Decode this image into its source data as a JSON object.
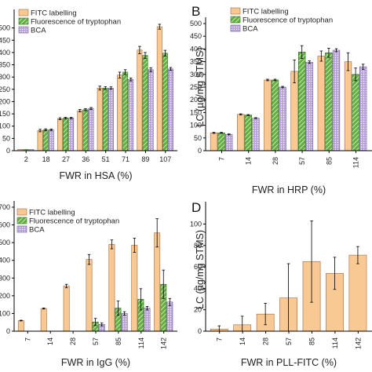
{
  "colors": {
    "fitc_fill": "#F9C993",
    "fitc_stroke": "#A0683A",
    "trp_fill": "#63B03F",
    "trp_stroke": "#2D6B1F",
    "bca_fill": "#B9A3DA",
    "bca_stroke": "#6C5A94",
    "axis": "#000000"
  },
  "chart_data": [
    {
      "id": "A",
      "type": "bar",
      "panel_label": "",
      "xlabel": "FWR in HSA (%)",
      "ylabel": "",
      "ylim": [
        0,
        550
      ],
      "yticks": [
        0,
        50,
        100,
        150,
        200,
        250,
        300,
        350,
        400,
        450,
        500
      ],
      "ytick_labels": [
        "0",
        "50",
        "100",
        "150",
        "200",
        "250",
        "300",
        "350",
        "400",
        "450",
        "500"
      ],
      "categories": [
        "2",
        "18",
        "27",
        "36",
        "51",
        "71",
        "89",
        "107"
      ],
      "series": [
        {
          "name": "FITC labelling",
          "style": "fitc",
          "values": [
            5,
            82,
            130,
            163,
            255,
            308,
            410,
            505
          ],
          "errors": [
            0,
            5,
            4,
            5,
            8,
            12,
            15,
            10
          ]
        },
        {
          "name": "Fluorescence of tryptophan",
          "style": "trp",
          "values": [
            5,
            85,
            133,
            167,
            255,
            320,
            388,
            397
          ],
          "errors": [
            0,
            4,
            3,
            4,
            6,
            10,
            12,
            12
          ]
        },
        {
          "name": "BCA",
          "style": "bca",
          "values": [
            5,
            85,
            133,
            172,
            255,
            290,
            330,
            333
          ],
          "errors": [
            0,
            3,
            3,
            4,
            5,
            6,
            8,
            6
          ]
        }
      ],
      "legend": "top-left",
      "rotate_xticks": false
    },
    {
      "id": "B",
      "type": "bar",
      "panel_label": "B",
      "xlabel": "FWR in HRP (%)",
      "ylabel": "LC (µg/mg STMS)",
      "ylim": [
        0,
        500
      ],
      "yticks": [
        0,
        50,
        100,
        150,
        200,
        250,
        300,
        350,
        400,
        450,
        500
      ],
      "ytick_labels": [
        "0",
        "50",
        "100",
        "150",
        "200",
        "250",
        "300",
        "350",
        "400",
        "450",
        "500"
      ],
      "categories": [
        "7",
        "14",
        "28",
        "57",
        "85",
        "114"
      ],
      "series": [
        {
          "name": "FITC labelling",
          "style": "fitc",
          "values": [
            70,
            143,
            278,
            312,
            372,
            350
          ],
          "errors": [
            2,
            2,
            3,
            45,
            20,
            35
          ]
        },
        {
          "name": "Fluorescence of tryptophan",
          "style": "trp",
          "values": [
            70,
            140,
            278,
            388,
            385,
            300
          ],
          "errors": [
            2,
            2,
            3,
            25,
            18,
            25
          ]
        },
        {
          "name": "BCA",
          "style": "bca",
          "values": [
            64,
            128,
            250,
            348,
            395,
            330
          ],
          "errors": [
            2,
            2,
            3,
            5,
            6,
            10
          ]
        }
      ],
      "legend": "top-left",
      "rotate_xticks": true
    },
    {
      "id": "C",
      "type": "bar",
      "panel_label": "",
      "xlabel": "FWR in IgG (%)",
      "ylabel": "",
      "ylim": [
        0,
        700
      ],
      "yticks": [
        0,
        100,
        200,
        300,
        400,
        500,
        600,
        700
      ],
      "ytick_labels": [
        "0",
        "100",
        "200",
        "300",
        "400",
        "500",
        "600",
        "700"
      ],
      "categories": [
        "7",
        "14",
        "28",
        "57",
        "85",
        "114",
        "142"
      ],
      "series": [
        {
          "name": "FITC labelling",
          "style": "fitc",
          "values": [
            60,
            128,
            255,
            405,
            490,
            485,
            555
          ],
          "errors": [
            2,
            3,
            10,
            28,
            25,
            40,
            80
          ]
        },
        {
          "name": "Fluorescence of tryptophan",
          "style": "trp",
          "values": [
            0,
            0,
            0,
            52,
            130,
            180,
            265
          ],
          "errors": [
            0,
            0,
            0,
            20,
            40,
            60,
            80
          ]
        },
        {
          "name": "BCA",
          "style": "bca",
          "values": [
            0,
            0,
            0,
            38,
            100,
            130,
            165
          ],
          "errors": [
            0,
            0,
            0,
            8,
            10,
            10,
            20
          ]
        }
      ],
      "legend": "top-left",
      "rotate_xticks": true
    },
    {
      "id": "D",
      "type": "bar",
      "panel_label": "D",
      "xlabel": "FWR in PLL-FITC (%)",
      "ylabel": "LC (µg/mg STMS)",
      "ylim": [
        0,
        115
      ],
      "yticks": [
        0,
        20,
        40,
        60,
        80,
        100
      ],
      "ytick_labels": [
        "0",
        "20",
        "40",
        "60",
        "80",
        "100"
      ],
      "categories": [
        "7",
        "14",
        "28",
        "57",
        "85",
        "114",
        "142"
      ],
      "series": [
        {
          "name": "FITC labelling",
          "style": "fitc",
          "values": [
            2,
            6,
            16,
            31,
            65,
            54,
            71
          ],
          "errors": [
            3,
            8,
            10,
            32,
            38,
            15,
            8
          ]
        }
      ],
      "legend": "none",
      "rotate_xticks": true
    }
  ]
}
